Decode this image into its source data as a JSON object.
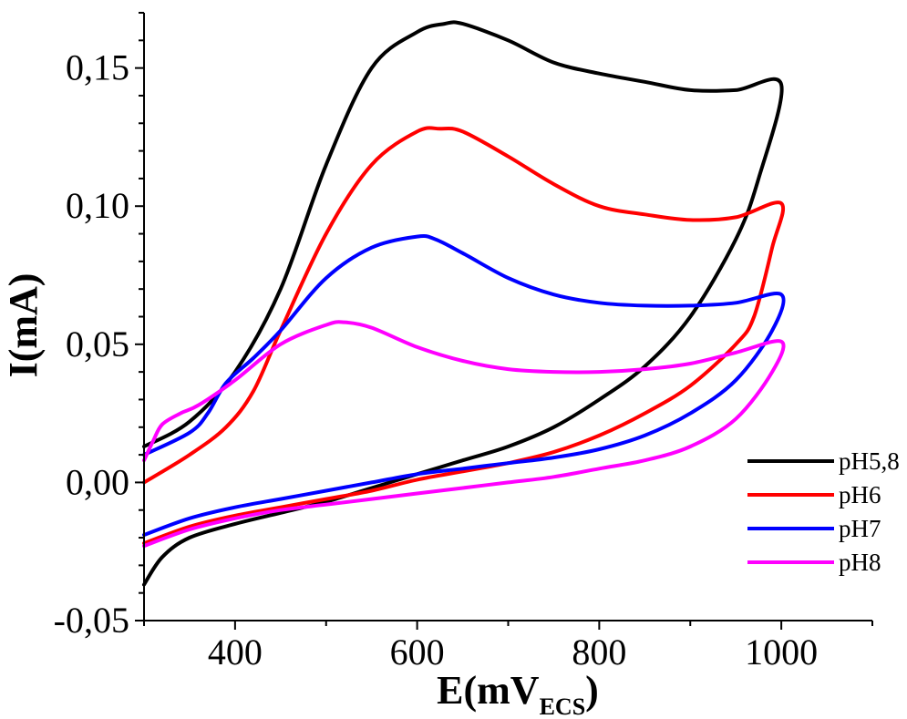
{
  "chart_data": {
    "type": "line",
    "xlabel": {
      "main": "E(mV",
      "subscript": "ECS",
      "close": ")"
    },
    "ylabel": "I(mA)",
    "xlim": [
      300,
      1100
    ],
    "ylim": [
      -0.05,
      0.17
    ],
    "x_ticks": [
      {
        "value": 400,
        "label": "400"
      },
      {
        "value": 600,
        "label": "600"
      },
      {
        "value": 800,
        "label": "800"
      },
      {
        "value": 1000,
        "label": "1000"
      }
    ],
    "y_ticks": [
      {
        "value": -0.05,
        "label": "-0,05"
      },
      {
        "value": 0.0,
        "label": "0,00"
      },
      {
        "value": 0.05,
        "label": "0,05"
      },
      {
        "value": 0.1,
        "label": "0,10"
      },
      {
        "value": 0.15,
        "label": "0,15"
      }
    ],
    "legend_position": "right",
    "grid": false,
    "series": [
      {
        "name": "pH5,8",
        "color": "#000000",
        "x": [
          300,
          350,
          400,
          450,
          500,
          550,
          600,
          630,
          650,
          700,
          750,
          800,
          850,
          900,
          950,
          1000,
          975,
          950,
          900,
          850,
          800,
          750,
          700,
          650,
          600,
          550,
          500,
          450,
          400,
          350,
          320,
          300
        ],
        "y": [
          0.013,
          0.022,
          0.04,
          0.07,
          0.115,
          0.15,
          0.163,
          0.166,
          0.166,
          0.16,
          0.152,
          0.148,
          0.145,
          0.142,
          0.142,
          0.144,
          0.11,
          0.088,
          0.06,
          0.042,
          0.03,
          0.02,
          0.013,
          0.008,
          0.003,
          -0.002,
          -0.007,
          -0.011,
          -0.015,
          -0.02,
          -0.027,
          -0.037
        ]
      },
      {
        "name": "pH6",
        "color": "#ff0000",
        "x": [
          300,
          350,
          390,
          420,
          450,
          500,
          550,
          600,
          625,
          650,
          700,
          750,
          800,
          850,
          900,
          950,
          1000,
          990,
          970,
          950,
          900,
          850,
          800,
          750,
          700,
          650,
          600,
          550,
          500,
          450,
          400,
          350,
          300
        ],
        "y": [
          0.0,
          0.01,
          0.02,
          0.033,
          0.055,
          0.09,
          0.115,
          0.127,
          0.128,
          0.127,
          0.118,
          0.108,
          0.1,
          0.097,
          0.095,
          0.096,
          0.101,
          0.085,
          0.06,
          0.05,
          0.035,
          0.025,
          0.017,
          0.011,
          0.007,
          0.004,
          0.001,
          -0.003,
          -0.006,
          -0.009,
          -0.012,
          -0.016,
          -0.022
        ]
      },
      {
        "name": "pH7",
        "color": "#0000ff",
        "x": [
          300,
          350,
          370,
          390,
          420,
          450,
          500,
          550,
          600,
          620,
          650,
          700,
          750,
          800,
          850,
          900,
          950,
          1000,
          990,
          950,
          900,
          850,
          800,
          750,
          700,
          650,
          600,
          550,
          500,
          450,
          400,
          350,
          300
        ],
        "y": [
          0.01,
          0.018,
          0.025,
          0.036,
          0.045,
          0.055,
          0.074,
          0.085,
          0.089,
          0.088,
          0.083,
          0.074,
          0.068,
          0.065,
          0.064,
          0.064,
          0.065,
          0.068,
          0.055,
          0.037,
          0.025,
          0.017,
          0.012,
          0.009,
          0.007,
          0.005,
          0.003,
          0.0,
          -0.003,
          -0.006,
          -0.009,
          -0.013,
          -0.019
        ]
      },
      {
        "name": "pH8",
        "color": "#ff00ff",
        "x": [
          300,
          310,
          320,
          340,
          360,
          400,
          450,
          500,
          520,
          550,
          600,
          650,
          700,
          750,
          800,
          850,
          900,
          950,
          1000,
          990,
          950,
          900,
          850,
          800,
          750,
          700,
          650,
          600,
          550,
          500,
          450,
          400,
          350,
          300
        ],
        "y": [
          0.008,
          0.015,
          0.021,
          0.025,
          0.028,
          0.037,
          0.05,
          0.057,
          0.058,
          0.056,
          0.049,
          0.044,
          0.041,
          0.04,
          0.04,
          0.041,
          0.043,
          0.047,
          0.051,
          0.04,
          0.023,
          0.013,
          0.008,
          0.005,
          0.002,
          0.0,
          -0.002,
          -0.004,
          -0.006,
          -0.008,
          -0.01,
          -0.013,
          -0.017,
          -0.023
        ]
      }
    ]
  }
}
